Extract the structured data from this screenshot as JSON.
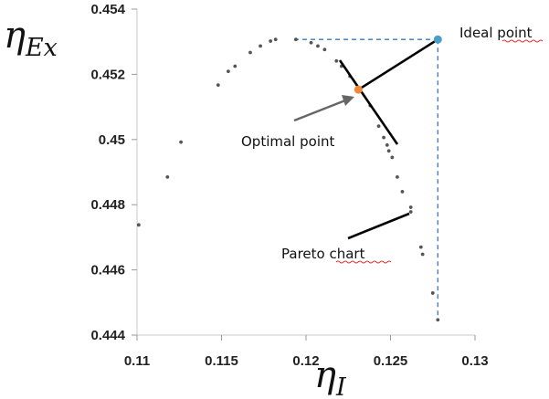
{
  "chart_data": {
    "type": "scatter",
    "xlabel": "η",
    "xlabel_sub": "I",
    "ylabel": "η",
    "ylabel_sub": "Ex",
    "xlim": [
      0.11,
      0.13
    ],
    "ylim": [
      0.444,
      0.454
    ],
    "xticks": [
      0.11,
      0.115,
      0.12,
      0.125,
      0.13
    ],
    "xtick_labels": [
      "0.11",
      "0.115",
      "0.12",
      "0.125",
      "0.13"
    ],
    "yticks": [
      0.444,
      0.446,
      0.448,
      0.45,
      0.452,
      0.454
    ],
    "ytick_labels": [
      "0.444",
      "0.446",
      "0.448",
      "0.45",
      "0.452",
      "0.454"
    ],
    "grid": false,
    "points": [
      {
        "x": 0.1101,
        "y": 0.44738
      },
      {
        "x": 0.1118,
        "y": 0.44885
      },
      {
        "x": 0.1126,
        "y": 0.44992
      },
      {
        "x": 0.1148,
        "y": 0.45167
      },
      {
        "x": 0.1154,
        "y": 0.45209
      },
      {
        "x": 0.1158,
        "y": 0.45225
      },
      {
        "x": 0.1167,
        "y": 0.45267
      },
      {
        "x": 0.1173,
        "y": 0.45287
      },
      {
        "x": 0.1179,
        "y": 0.45302
      },
      {
        "x": 0.1182,
        "y": 0.45307
      },
      {
        "x": 0.1194,
        "y": 0.45307
      },
      {
        "x": 0.1203,
        "y": 0.45297
      },
      {
        "x": 0.1207,
        "y": 0.45287
      },
      {
        "x": 0.1211,
        "y": 0.45276
      },
      {
        "x": 0.1218,
        "y": 0.45241
      },
      {
        "x": 0.1221,
        "y": 0.45225
      },
      {
        "x": 0.1226,
        "y": 0.45194
      },
      {
        "x": 0.1238,
        "y": 0.45104
      },
      {
        "x": 0.1243,
        "y": 0.45041
      },
      {
        "x": 0.1246,
        "y": 0.45006
      },
      {
        "x": 0.1248,
        "y": 0.44983
      },
      {
        "x": 0.1249,
        "y": 0.44965
      },
      {
        "x": 0.1251,
        "y": 0.44945
      },
      {
        "x": 0.1254,
        "y": 0.44885
      },
      {
        "x": 0.1257,
        "y": 0.4484
      },
      {
        "x": 0.1262,
        "y": 0.44792
      },
      {
        "x": 0.1262,
        "y": 0.44778
      },
      {
        "x": 0.1268,
        "y": 0.4467
      },
      {
        "x": 0.1269,
        "y": 0.44648
      },
      {
        "x": 0.1275,
        "y": 0.44529
      },
      {
        "x": 0.1278,
        "y": 0.44447
      }
    ],
    "optimal_point": {
      "x": 0.1231,
      "y": 0.45153
    },
    "ideal_point": {
      "x": 0.1278,
      "y": 0.45307
    },
    "annotations": {
      "ideal": "Ideal point",
      "optimal": "Optimal point",
      "pareto": "Pareto chart"
    },
    "colors": {
      "points": "#555555",
      "optimal": "#f0883a",
      "ideal": "#4a9fc9",
      "dashed": "#3a78b8",
      "lines": "#000000",
      "arrow": "#666666"
    }
  }
}
